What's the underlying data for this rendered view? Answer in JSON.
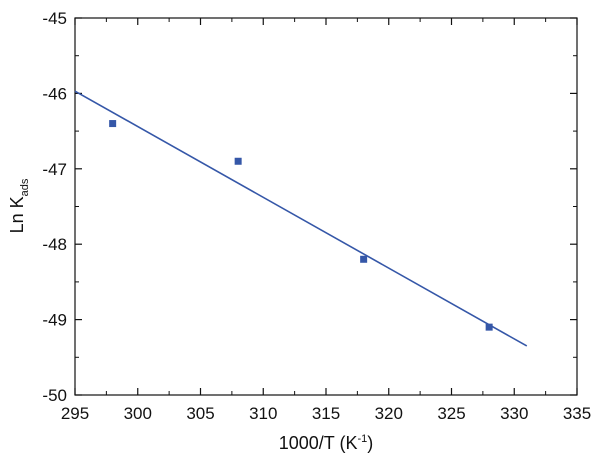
{
  "chart_data": {
    "type": "scatter",
    "title": "",
    "xlabel": "1000/T (K",
    "xlabel_sup": "-1",
    "xlabel_suffix": ")",
    "ylabel": "Ln K",
    "ylabel_sub": "ads",
    "xlim": [
      295,
      335
    ],
    "ylim": [
      -50,
      -45
    ],
    "x_ticks": [
      295,
      300,
      305,
      310,
      315,
      320,
      325,
      330,
      335
    ],
    "y_ticks": [
      -50,
      -49,
      -48,
      -47,
      -46,
      -45
    ],
    "grid": false,
    "legend": "none",
    "series": [
      {
        "kind": "points",
        "color": "#3557a8",
        "x": [
          298,
          308,
          318,
          328
        ],
        "y": [
          -46.4,
          -46.9,
          -48.2,
          -49.1
        ]
      },
      {
        "kind": "fit-line",
        "color": "#3557a8",
        "x": [
          295,
          331
        ],
        "y": [
          -45.97,
          -49.35
        ]
      }
    ]
  }
}
